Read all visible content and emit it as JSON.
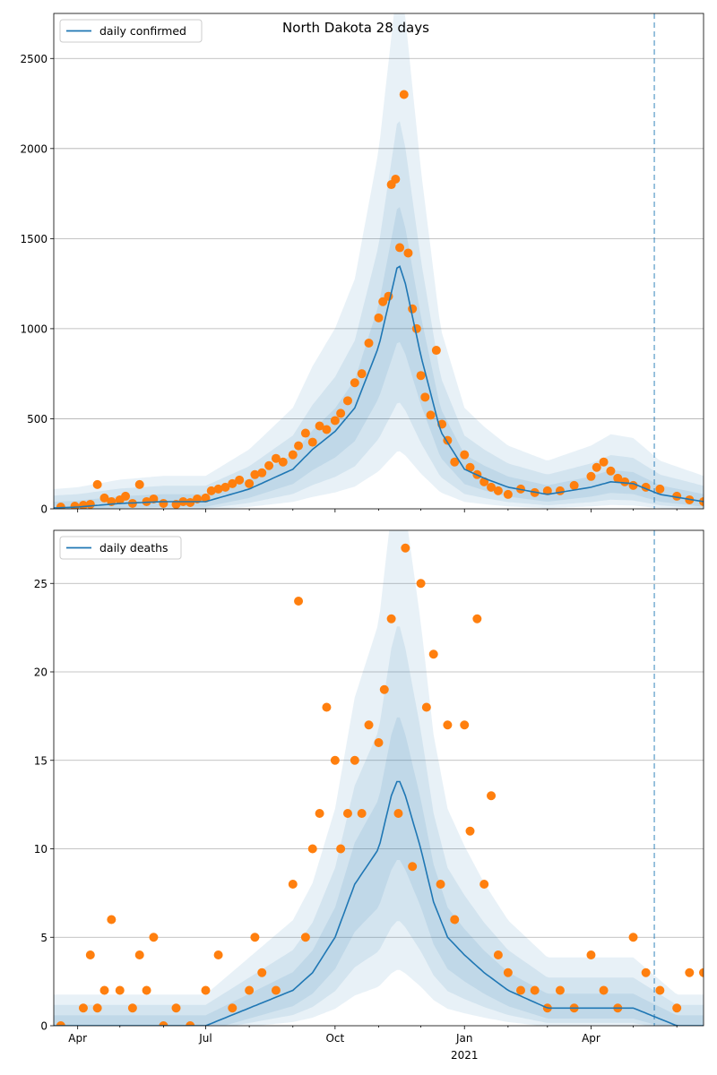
{
  "chart_data": [
    {
      "type": "line",
      "title": "North Dakota 28 days",
      "ylabel": "",
      "xlabel": "",
      "ylim": [
        0,
        2750
      ],
      "yticks": [
        0,
        500,
        1000,
        1500,
        2000,
        2500
      ],
      "grid": true,
      "legend": "top-left",
      "series": [
        {
          "name": "daily confirmed",
          "color": "#1f77b4",
          "x": [
            "2020-03-15",
            "2020-04-01",
            "2020-05-01",
            "2020-06-01",
            "2020-07-01",
            "2020-08-01",
            "2020-09-01",
            "2020-09-15",
            "2020-10-01",
            "2020-10-15",
            "2020-11-01",
            "2020-11-10",
            "2020-11-15",
            "2020-11-20",
            "2020-12-01",
            "2020-12-15",
            "2021-01-01",
            "2021-01-15",
            "2021-02-01",
            "2021-03-01",
            "2021-04-01",
            "2021-04-15",
            "2021-05-01",
            "2021-05-20",
            "2021-06-20"
          ],
          "values": [
            5,
            10,
            30,
            40,
            40,
            110,
            220,
            330,
            430,
            560,
            900,
            1200,
            1370,
            1250,
            850,
            430,
            220,
            170,
            120,
            80,
            120,
            150,
            140,
            80,
            40
          ]
        }
      ],
      "observed": {
        "color": "#ff7f0e",
        "x": [
          "2020-03-20",
          "2020-03-30",
          "2020-04-05",
          "2020-04-10",
          "2020-04-15",
          "2020-04-20",
          "2020-04-25",
          "2020-05-01",
          "2020-05-05",
          "2020-05-10",
          "2020-05-15",
          "2020-05-20",
          "2020-05-25",
          "2020-06-01",
          "2020-06-10",
          "2020-06-15",
          "2020-06-20",
          "2020-06-25",
          "2020-07-01",
          "2020-07-05",
          "2020-07-10",
          "2020-07-15",
          "2020-07-20",
          "2020-07-25",
          "2020-08-01",
          "2020-08-05",
          "2020-08-10",
          "2020-08-15",
          "2020-08-20",
          "2020-08-25",
          "2020-09-01",
          "2020-09-05",
          "2020-09-10",
          "2020-09-15",
          "2020-09-20",
          "2020-09-25",
          "2020-10-01",
          "2020-10-05",
          "2020-10-10",
          "2020-10-15",
          "2020-10-20",
          "2020-10-25",
          "2020-11-01",
          "2020-11-04",
          "2020-11-08",
          "2020-11-10",
          "2020-11-13",
          "2020-11-16",
          "2020-11-19",
          "2020-11-22",
          "2020-11-25",
          "2020-11-28",
          "2020-12-01",
          "2020-12-04",
          "2020-12-08",
          "2020-12-12",
          "2020-12-16",
          "2020-12-20",
          "2020-12-25",
          "2021-01-01",
          "2021-01-05",
          "2021-01-10",
          "2021-01-15",
          "2021-01-20",
          "2021-01-25",
          "2021-02-01",
          "2021-02-10",
          "2021-02-20",
          "2021-03-01",
          "2021-03-10",
          "2021-03-20",
          "2021-04-01",
          "2021-04-05",
          "2021-04-10",
          "2021-04-15",
          "2021-04-20",
          "2021-04-25",
          "2021-05-01",
          "2021-05-10",
          "2021-05-20",
          "2021-06-01",
          "2021-06-10",
          "2021-06-20"
        ],
        "values": [
          10,
          15,
          20,
          25,
          135,
          60,
          40,
          50,
          70,
          30,
          135,
          40,
          55,
          30,
          25,
          40,
          35,
          55,
          60,
          100,
          110,
          120,
          140,
          160,
          140,
          190,
          200,
          240,
          280,
          260,
          300,
          350,
          420,
          370,
          460,
          440,
          490,
          530,
          600,
          700,
          750,
          920,
          1060,
          1150,
          1180,
          1800,
          1830,
          1450,
          2300,
          1420,
          1110,
          1000,
          740,
          620,
          520,
          880,
          470,
          380,
          260,
          300,
          230,
          190,
          150,
          120,
          100,
          80,
          110,
          90,
          100,
          100,
          130,
          180,
          230,
          260,
          210,
          170,
          150,
          130,
          120,
          110,
          70,
          50,
          40
        ]
      }
    },
    {
      "type": "line",
      "title": "",
      "ylabel": "",
      "xlabel": "",
      "ylim": [
        0,
        28
      ],
      "yticks": [
        0,
        5,
        10,
        15,
        20,
        25
      ],
      "grid": true,
      "legend": "top-left",
      "xticks": [
        "Apr",
        "Jul",
        "Oct",
        "Jan",
        "Apr"
      ],
      "xtick_dates": [
        "2020-04-01",
        "2020-07-01",
        "2020-10-01",
        "2021-01-01",
        "2021-04-01"
      ],
      "year_label": "2021",
      "vline_date": "2021-05-16",
      "series": [
        {
          "name": "daily deaths",
          "color": "#1f77b4",
          "x": [
            "2020-03-15",
            "2020-05-01",
            "2020-06-01",
            "2020-07-01",
            "2020-08-01",
            "2020-09-01",
            "2020-09-15",
            "2020-10-01",
            "2020-10-15",
            "2020-11-01",
            "2020-11-10",
            "2020-11-15",
            "2020-11-20",
            "2020-12-01",
            "2020-12-10",
            "2020-12-20",
            "2021-01-01",
            "2021-01-15",
            "2021-02-01",
            "2021-03-01",
            "2021-04-01",
            "2021-05-01",
            "2021-06-01",
            "2021-06-20"
          ],
          "values": [
            0,
            0,
            0,
            0,
            1,
            2,
            3,
            5,
            8,
            10,
            13,
            14,
            13,
            10,
            7,
            5,
            4,
            3,
            2,
            1,
            1,
            1,
            0,
            0
          ]
        }
      ],
      "observed": {
        "color": "#ff7f0e",
        "x": [
          "2020-03-20",
          "2020-04-05",
          "2020-04-10",
          "2020-04-15",
          "2020-04-20",
          "2020-04-25",
          "2020-05-01",
          "2020-05-10",
          "2020-05-15",
          "2020-05-20",
          "2020-05-25",
          "2020-06-01",
          "2020-06-10",
          "2020-06-20",
          "2020-07-01",
          "2020-07-10",
          "2020-07-20",
          "2020-08-01",
          "2020-08-05",
          "2020-08-10",
          "2020-08-20",
          "2020-09-01",
          "2020-09-05",
          "2020-09-10",
          "2020-09-15",
          "2020-09-20",
          "2020-09-25",
          "2020-10-01",
          "2020-10-05",
          "2020-10-10",
          "2020-10-15",
          "2020-10-20",
          "2020-10-25",
          "2020-11-01",
          "2020-11-05",
          "2020-11-10",
          "2020-11-15",
          "2020-11-20",
          "2020-11-25",
          "2020-12-01",
          "2020-12-05",
          "2020-12-10",
          "2020-12-15",
          "2020-12-20",
          "2020-12-25",
          "2021-01-01",
          "2021-01-05",
          "2021-01-10",
          "2021-01-15",
          "2021-01-20",
          "2021-01-25",
          "2021-02-01",
          "2021-02-10",
          "2021-02-20",
          "2021-03-01",
          "2021-03-10",
          "2021-03-20",
          "2021-04-01",
          "2021-04-10",
          "2021-04-20",
          "2021-05-01",
          "2021-05-10",
          "2021-05-20",
          "2021-06-01",
          "2021-06-10",
          "2021-06-20"
        ],
        "values": [
          0,
          1,
          4,
          1,
          2,
          6,
          2,
          1,
          4,
          2,
          5,
          0,
          1,
          0,
          2,
          4,
          1,
          2,
          5,
          3,
          2,
          8,
          24,
          5,
          10,
          12,
          18,
          15,
          10,
          12,
          15,
          12,
          17,
          16,
          19,
          23,
          12,
          27,
          9,
          25,
          18,
          21,
          8,
          17,
          6,
          17,
          11,
          23,
          8,
          13,
          4,
          3,
          2,
          2,
          1,
          2,
          1,
          4,
          2,
          1,
          5,
          3,
          2,
          1,
          3,
          3
        ]
      }
    }
  ]
}
